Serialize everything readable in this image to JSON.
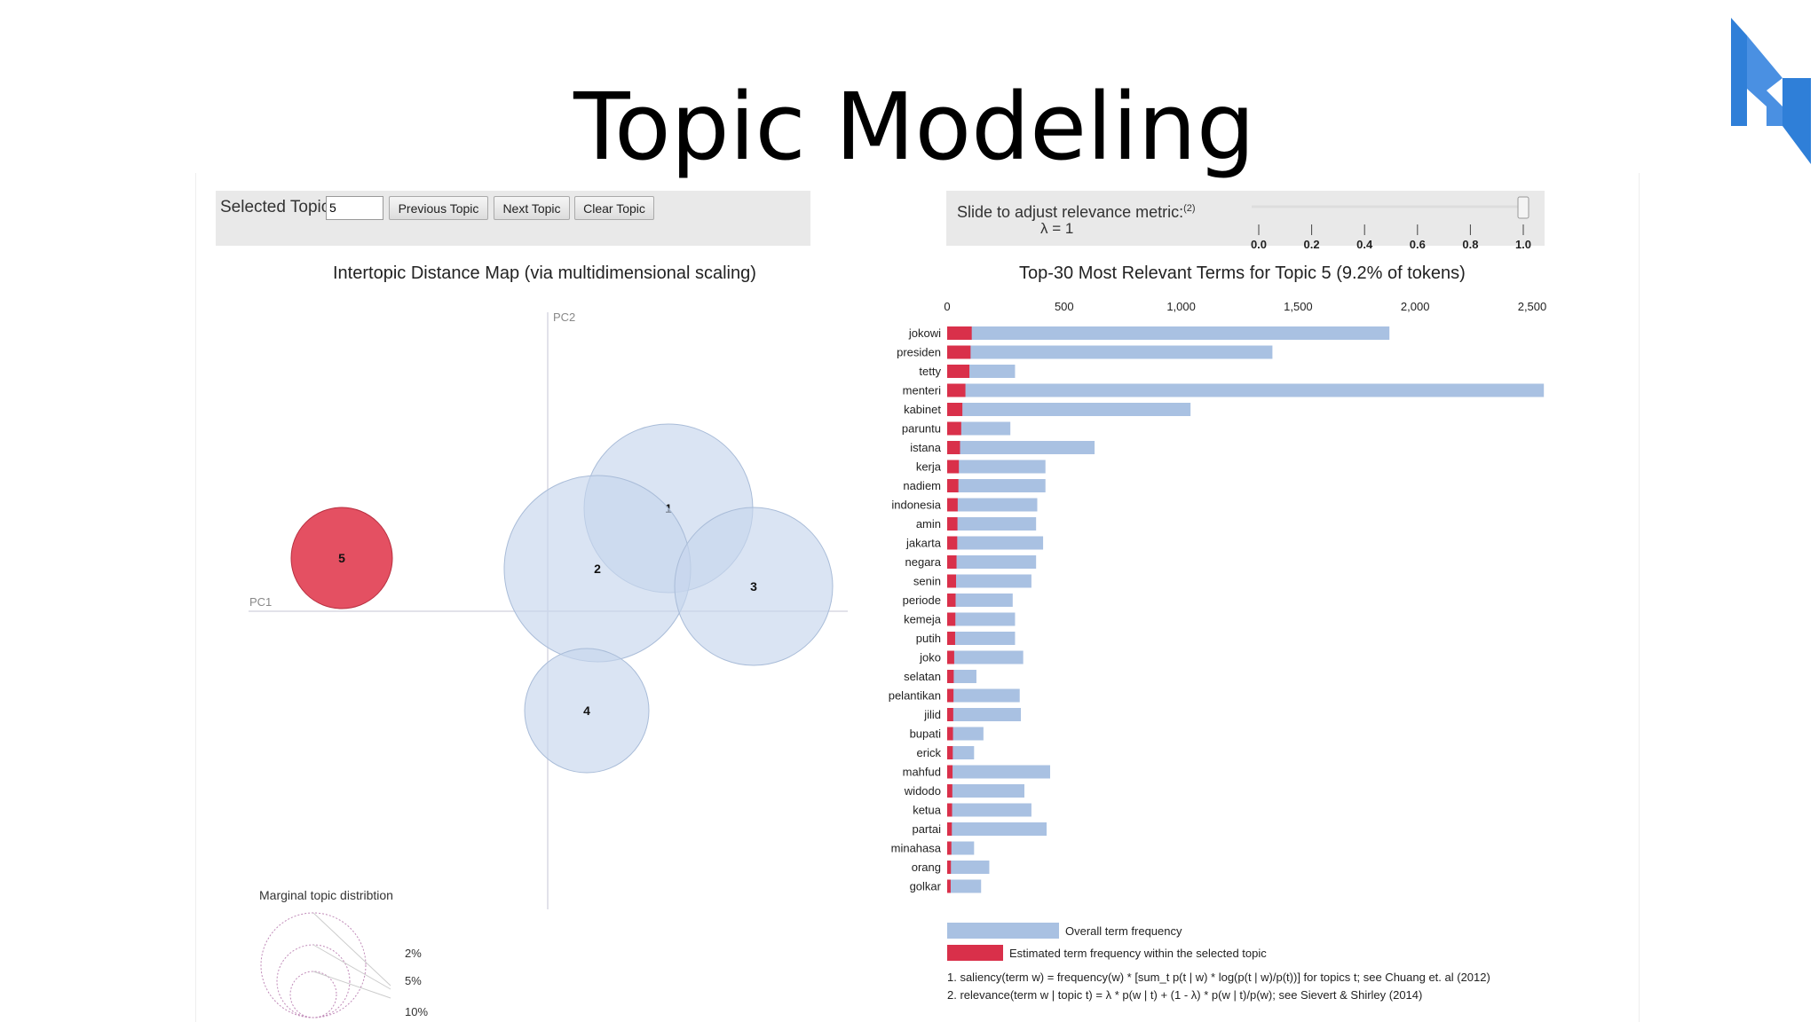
{
  "slide": {
    "title": "Topic Modeling"
  },
  "controls": {
    "selected_topic_label": "Selected Topic:",
    "selected_topic_value": "5",
    "prev_label": "Previous Topic",
    "next_label": "Next Topic",
    "clear_label": "Clear Topic",
    "slider_label": "Slide to adjust relevance metric:",
    "slider_footnote": "(2)",
    "lambda_label": "λ = 1",
    "lambda_value": 1,
    "slider_ticks": [
      "0.0",
      "0.2",
      "0.4",
      "0.6",
      "0.8",
      "1.0"
    ]
  },
  "colors": {
    "overall": "#a9c1e2",
    "estimated": "#d9304a",
    "bubble": "#c6d6ec",
    "bubble_selected": "#e3475a"
  },
  "chart_data": [
    {
      "type": "scatter",
      "title": "Intertopic Distance Map (via multidimensional scaling)",
      "xlabel": "PC1",
      "ylabel": "PC2",
      "selected": "5",
      "topics": [
        {
          "label": "1",
          "x": 0.34,
          "y": 0.29,
          "size_rank": 3
        },
        {
          "label": "2",
          "x": 0.14,
          "y": 0.12,
          "size_rank": 4
        },
        {
          "label": "3",
          "x": 0.58,
          "y": 0.07,
          "size_rank": 2
        },
        {
          "label": "4",
          "x": 0.11,
          "y": -0.28,
          "size_rank": 1
        },
        {
          "label": "5",
          "x": -0.58,
          "y": 0.15,
          "size_rank": 0
        }
      ],
      "legend": {
        "title": "Marginal topic distribtion",
        "labels": [
          "2%",
          "5%",
          "10%"
        ]
      }
    },
    {
      "type": "bar",
      "title": "Top-30 Most Relevant Terms for Topic 5 (9.2% of tokens)",
      "xlim": [
        0,
        2500
      ],
      "ticks": [
        0,
        500,
        1000,
        1500,
        2000,
        2500
      ],
      "tick_labels": [
        "0",
        "500",
        "1,000",
        "1,500",
        "2,000",
        "2,500"
      ],
      "categories": [
        "jokowi",
        "presiden",
        "tetty",
        "menteri",
        "kabinet",
        "paruntu",
        "istana",
        "kerja",
        "nadiem",
        "indonesia",
        "amin",
        "jakarta",
        "negara",
        "senin",
        "periode",
        "kemeja",
        "putih",
        "joko",
        "selatan",
        "pelantikan",
        "jilid",
        "bupati",
        "erick",
        "mahfud",
        "widodo",
        "ketua",
        "partai",
        "minahasa",
        "orang",
        "golkar"
      ],
      "series": [
        {
          "name": "Overall term frequency",
          "values": [
            1890,
            1390,
            290,
            2550,
            1040,
            270,
            630,
            420,
            420,
            385,
            380,
            410,
            380,
            360,
            280,
            290,
            290,
            325,
            125,
            310,
            315,
            155,
            115,
            440,
            330,
            360,
            425,
            115,
            180,
            145
          ]
        },
        {
          "name": "Estimated term frequency within the selected topic",
          "values": [
            105,
            100,
            95,
            78,
            65,
            60,
            55,
            50,
            48,
            45,
            44,
            43,
            40,
            38,
            36,
            35,
            34,
            30,
            28,
            27,
            26,
            25,
            24,
            23,
            22,
            21,
            20,
            18,
            16,
            15
          ]
        }
      ],
      "footnotes": [
        "1. saliency(term w) = frequency(w) * [sum_t p(t | w) * log(p(t | w)/p(t))] for topics t; see Chuang et. al (2012)",
        "2. relevance(term w | topic t) = λ * p(w | t) + (1 - λ) * p(w | t)/p(w); see Sievert & Shirley (2014)"
      ]
    }
  ]
}
